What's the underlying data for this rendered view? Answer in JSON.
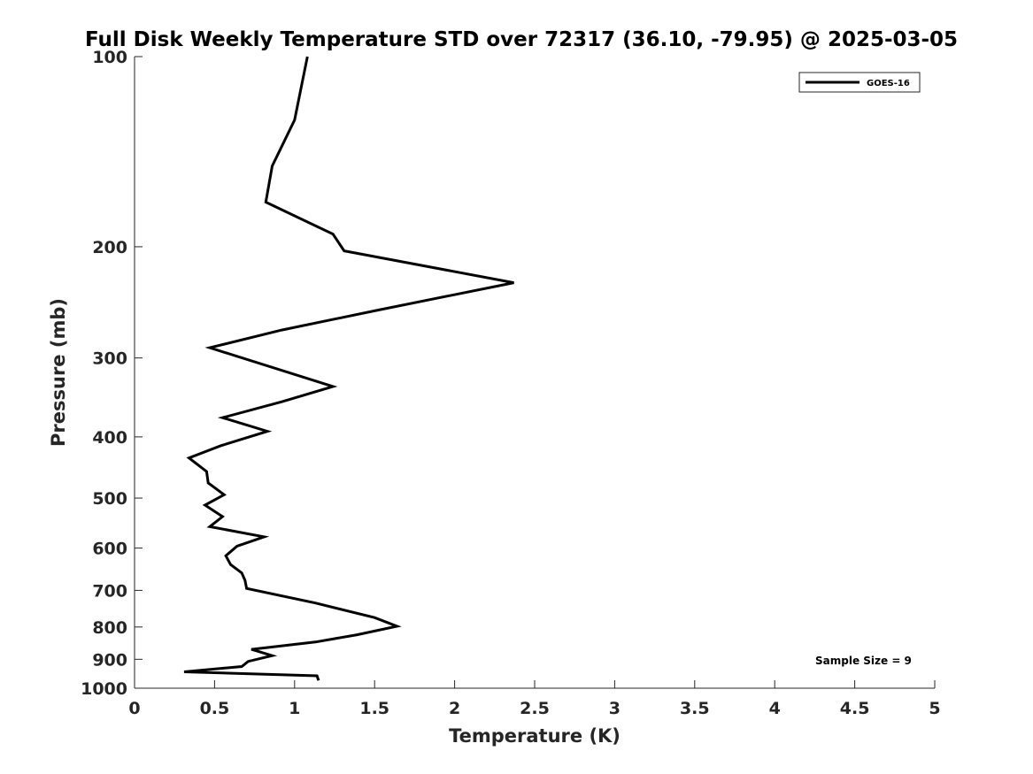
{
  "chart_data": {
    "type": "line",
    "title": "Full Disk Weekly Temperature STD over 72317 (36.10, -79.95) @ 2025-03-05",
    "xlabel": "Temperature (K)",
    "ylabel": "Pressure (mb)",
    "xlim": [
      0,
      5
    ],
    "ylim": [
      100,
      1000
    ],
    "y_scale": "log",
    "y_reversed": true,
    "x_ticks": [
      "0",
      "0.5",
      "1",
      "1.5",
      "2",
      "2.5",
      "3",
      "3.5",
      "4",
      "4.5",
      "5"
    ],
    "y_ticks": [
      "100",
      "200",
      "300",
      "400",
      "500",
      "600",
      "700",
      "800",
      "900",
      "1000"
    ],
    "grid": false,
    "legend_position": "top-right",
    "annotation": "Sample Size = 9",
    "series": [
      {
        "name": "GOES-16",
        "color": "#000000",
        "x": [
          1.08,
          1.0,
          0.86,
          0.82,
          1.24,
          1.31,
          2.37,
          1.52,
          0.92,
          0.47,
          1.24,
          0.92,
          0.55,
          0.83,
          0.54,
          0.34,
          0.45,
          0.46,
          0.56,
          0.44,
          0.55,
          0.47,
          0.81,
          0.64,
          0.57,
          0.6,
          0.67,
          0.69,
          0.7,
          1.13,
          1.5,
          1.64,
          1.39,
          1.13,
          0.73,
          0.86,
          0.71,
          0.67,
          0.31,
          1.14,
          1.15
        ],
        "y": [
          100,
          126,
          149,
          170,
          191,
          203,
          228,
          252,
          271,
          289,
          333,
          352,
          373,
          392,
          413,
          432,
          454,
          473,
          494,
          513,
          535,
          555,
          576,
          596,
          617,
          637,
          657,
          675,
          695,
          733,
          773,
          798,
          823,
          845,
          868,
          888,
          907,
          924,
          942,
          956,
          972
        ]
      }
    ]
  }
}
